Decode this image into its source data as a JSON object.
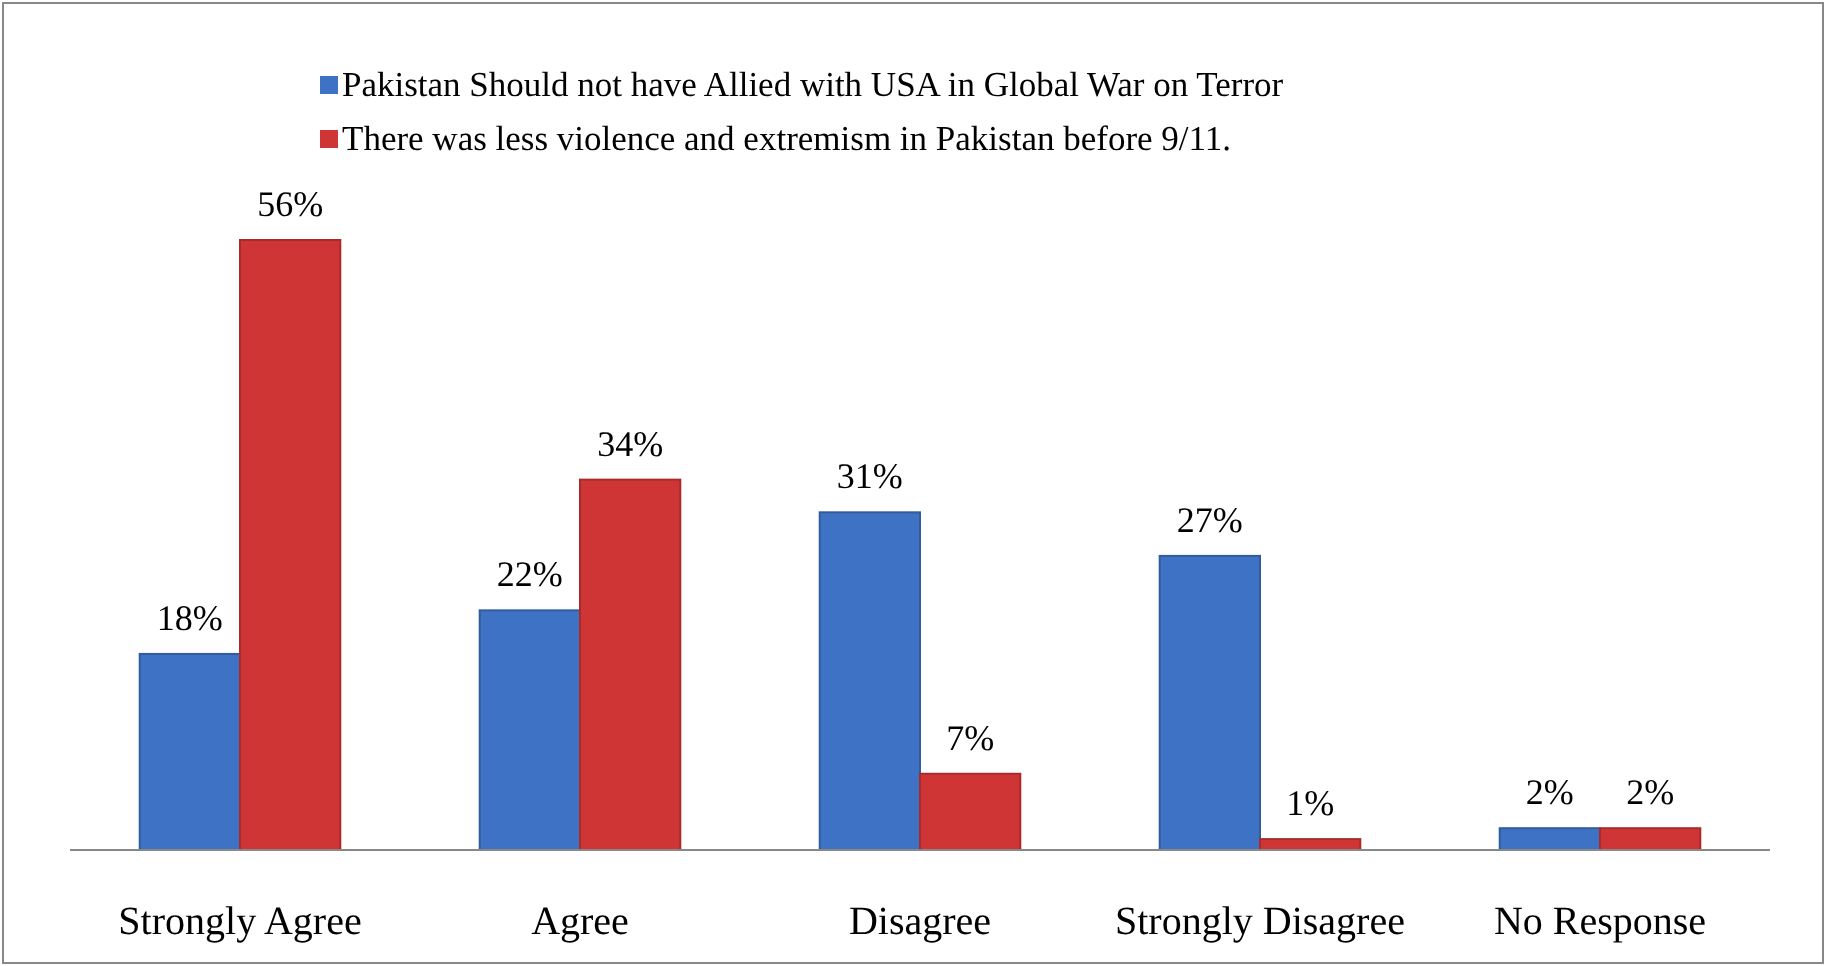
{
  "chart_data": {
    "type": "bar",
    "categories": [
      "Strongly Agree",
      "Agree",
      "Disagree",
      "Strongly Disagree",
      "No Response"
    ],
    "series": [
      {
        "name": "Pakistan Should not have Allied with USA in Global War on Terror",
        "color": "#3d72c4",
        "values": [
          18,
          22,
          31,
          27,
          2
        ],
        "value_labels": [
          "18%",
          "22%",
          "31%",
          "27%",
          "2%"
        ]
      },
      {
        "name": "There was less violence and extremism in Pakistan before 9/11.",
        "color": "#d03535",
        "values": [
          56,
          34,
          7,
          1,
          2
        ],
        "value_labels": [
          "56%",
          "34%",
          "7%",
          "1%",
          "2%"
        ]
      }
    ],
    "legend": "top"
  }
}
